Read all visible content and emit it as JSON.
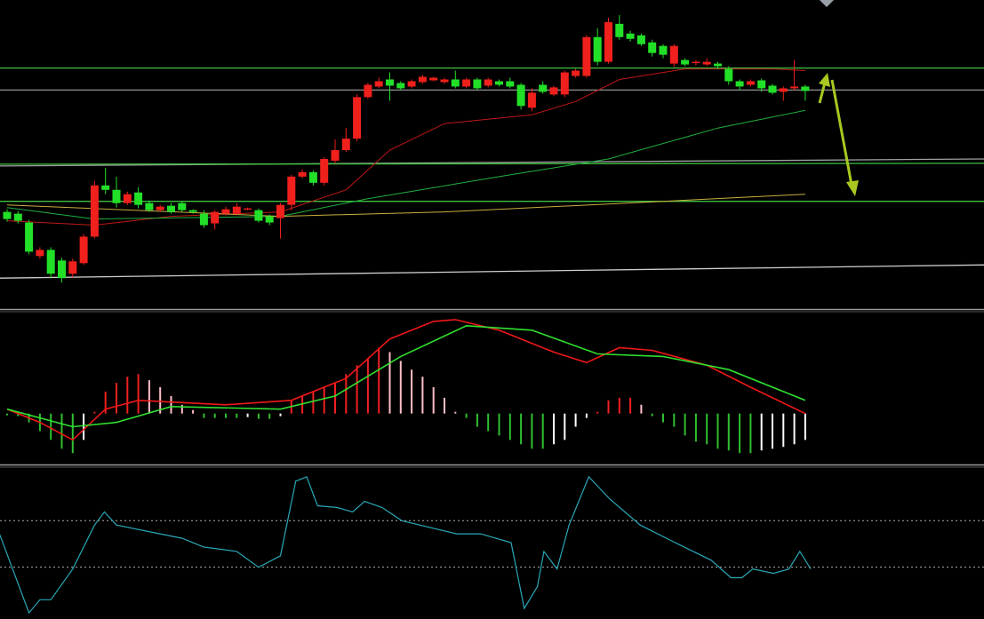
{
  "chart_data": [
    {
      "type": "candlestick",
      "open": [
        110,
        108,
        98,
        60,
        67,
        55,
        40,
        52,
        82,
        140,
        135,
        120,
        132,
        120,
        112,
        117,
        120,
        112,
        108,
        97,
        108,
        108,
        113,
        112,
        105,
        103,
        118,
        150,
        155,
        143,
        168,
        180,
        193,
        240,
        252,
        260,
        256,
        252,
        257,
        259,
        257,
        260,
        252,
        260,
        253,
        258,
        258,
        254,
        228,
        254,
        243,
        243,
        264,
        264,
        308,
        280,
        323,
        312,
        310,
        302,
        298,
        278,
        282,
        279,
        277,
        278,
        272,
        258,
        254,
        259,
        253,
        246,
        250,
        252
      ],
      "high": [
        113,
        111,
        101,
        70,
        70,
        58,
        57,
        85,
        145,
        160,
        150,
        133,
        138,
        123,
        118,
        120,
        122,
        113,
        112,
        112,
        116,
        120,
        115,
        114,
        107,
        120,
        152,
        158,
        157,
        172,
        192,
        205,
        243,
        256,
        262,
        268,
        258,
        260,
        265,
        263,
        262,
        270,
        262,
        262,
        262,
        260,
        262,
        256,
        250,
        258,
        253,
        270,
        272,
        310,
        318,
        330,
        333,
        315,
        312,
        305,
        300,
        300,
        284,
        282,
        284,
        280,
        275,
        260,
        260,
        261,
        255,
        252,
        282,
        254
      ],
      "low": [
        99,
        97,
        62,
        57,
        35,
        30,
        36,
        50,
        80,
        130,
        115,
        118,
        114,
        110,
        110,
        108,
        110,
        108,
        92,
        90,
        106,
        106,
        112,
        98,
        95,
        80,
        112,
        148,
        140,
        140,
        165,
        178,
        190,
        238,
        250,
        236,
        248,
        250,
        255,
        258,
        255,
        250,
        250,
        248,
        251,
        252,
        250,
        226,
        224,
        244,
        241,
        240,
        262,
        262,
        276,
        278,
        305,
        303,
        298,
        286,
        284,
        274,
        275,
        276,
        275,
        272,
        254,
        248,
        252,
        246,
        243,
        236,
        248,
        236
      ],
      "close": [
        102,
        100,
        65,
        67,
        40,
        35,
        54,
        82,
        140,
        135,
        120,
        130,
        118,
        112,
        116,
        110,
        112,
        110,
        95,
        110,
        113,
        116,
        114,
        100,
        98,
        118,
        150,
        155,
        143,
        170,
        180,
        193,
        240,
        254,
        258,
        253,
        250,
        258,
        263,
        262,
        260,
        252,
        260,
        250,
        260,
        254,
        252,
        230,
        245,
        246,
        251,
        268,
        270,
        308,
        280,
        325,
        308,
        306,
        300,
        290,
        288,
        298,
        277,
        280,
        280,
        275,
        258,
        252,
        258,
        250,
        245,
        250,
        252,
        247
      ],
      "up_color": "#f0201c",
      "down_color": "#22e028",
      "ylim": [
        0,
        350
      ],
      "overlays": [
        {
          "color": "#c01818",
          "x": [
            0,
            8,
            15,
            25,
            31,
            35,
            40,
            48,
            52,
            56,
            62,
            70,
            73
          ],
          "values": [
            100,
            95,
            105,
            110,
            135,
            180,
            210,
            220,
            235,
            260,
            272,
            272,
            270
          ]
        },
        {
          "color": "#20b040",
          "x": [
            0,
            8,
            25,
            33,
            45,
            55,
            65,
            73
          ],
          "values": [
            115,
            102,
            105,
            125,
            150,
            170,
            205,
            225
          ]
        },
        {
          "color": "#c8b040",
          "x": [
            0,
            25,
            40,
            60,
            73
          ],
          "values": [
            118,
            105,
            110,
            122,
            130
          ]
        }
      ],
      "trendlines": [
        {
          "color": "#40c040",
          "x": [
            -0.65,
            89.35
          ],
          "values": [
            273,
            273
          ]
        },
        {
          "color": "#909090",
          "x": [
            -0.65,
            89.35
          ],
          "values": [
            248,
            248
          ]
        },
        {
          "color": "#a0a0a0",
          "x": [
            -0.65,
            89.35
          ],
          "values": [
            162,
            170
          ]
        },
        {
          "color": "#40c040",
          "x": [
            -0.65,
            89.35
          ],
          "values": [
            164,
            165
          ]
        },
        {
          "color": "#40c040",
          "x": [
            -0.65,
            89.35
          ],
          "values": [
            122,
            122
          ]
        },
        {
          "color": "#d0d0d0",
          "x": [
            -0.65,
            89.35
          ],
          "values": [
            35,
            50
          ]
        }
      ]
    },
    {
      "type": "macd",
      "values": [
        -2,
        -3,
        -10,
        -20,
        -30,
        -40,
        -45,
        -30,
        2,
        25,
        35,
        42,
        45,
        38,
        30,
        20,
        10,
        4,
        -5,
        -5,
        -5,
        -5,
        -4,
        -6,
        -6,
        -3,
        15,
        20,
        25,
        30,
        35,
        45,
        55,
        62,
        75,
        70,
        60,
        50,
        42,
        30,
        18,
        2,
        -5,
        -15,
        -20,
        -25,
        -30,
        -35,
        -40,
        -40,
        -35,
        -30,
        -15,
        -5,
        2,
        15,
        18,
        18,
        10,
        -3,
        -10,
        -15,
        -25,
        -32,
        -35,
        -40,
        -42,
        -45,
        -45,
        -42,
        -40,
        -38,
        -35,
        -30
      ],
      "colors": {
        "up": "#f02020",
        "up_fading": "#ffc0c8",
        "down": "#30c030",
        "down_fading": "#ffffff"
      },
      "ylim": [
        -58,
        115
      ],
      "series": [
        {
          "color": "#f01818",
          "x": [
            0,
            3,
            6,
            9,
            12,
            20,
            26,
            31,
            35,
            39,
            41,
            45,
            50,
            53,
            56,
            59,
            64,
            68,
            73
          ],
          "values": [
            5,
            -10,
            -30,
            5,
            15,
            10,
            15,
            40,
            85,
            105,
            107,
            95,
            70,
            58,
            75,
            72,
            55,
            30,
            0
          ]
        },
        {
          "color": "#30e030",
          "x": [
            0,
            6,
            10,
            15,
            25,
            30,
            36,
            42,
            48,
            54,
            60,
            66,
            73
          ],
          "values": [
            5,
            -15,
            -10,
            8,
            5,
            20,
            65,
            100,
            95,
            68,
            65,
            50,
            15
          ]
        }
      ]
    },
    {
      "type": "line",
      "color": "#2aa8b8",
      "x": [
        -0.7,
        2,
        3,
        4,
        6,
        8,
        8.9,
        10,
        16,
        18,
        21,
        23,
        25,
        26.4,
        27.4,
        28.4,
        30.2,
        31.6,
        32.7,
        34.3,
        36.1,
        41.1,
        43.3,
        46.1,
        47.3,
        48.5,
        49.1,
        50.3,
        51.4,
        53.2,
        55.1,
        57.9,
        61.1,
        64.4,
        66.2,
        67.2,
        68.2,
        70.1,
        71.5,
        72.5,
        73.5
      ],
      "values": [
        97,
        7,
        22,
        22,
        57,
        107,
        122,
        107,
        92,
        82,
        77,
        59,
        72,
        157,
        162,
        129,
        127,
        122,
        134,
        127,
        112,
        97,
        97,
        87,
        12,
        37,
        77,
        57,
        107,
        162,
        137,
        107,
        87,
        67,
        47,
        47,
        57,
        52,
        57,
        77,
        57
      ],
      "ylim": [
        0,
        172
      ],
      "levels": [
        112,
        59
      ],
      "level_color": "#b0b0b0"
    }
  ]
}
